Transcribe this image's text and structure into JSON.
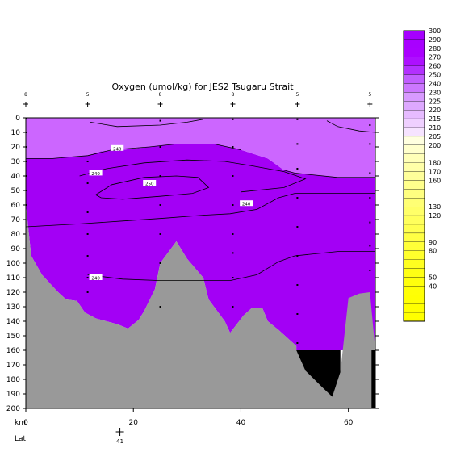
{
  "chart_data": {
    "type": "heatmap",
    "title": "Oxygen (umol/kg) for JES2 Tsugaru Strait",
    "xlabel": "km",
    "lat_label": "Lat",
    "lat_ticks": [
      {
        "x": 17.5,
        "label": "41"
      }
    ],
    "xlim": [
      0,
      65
    ],
    "ylim": [
      200,
      0
    ],
    "x_ticks": [
      0,
      20,
      40,
      60
    ],
    "y_ticks": [
      0,
      10,
      20,
      30,
      40,
      50,
      60,
      70,
      80,
      90,
      100,
      110,
      120,
      130,
      140,
      150,
      160,
      170,
      180,
      190,
      200
    ],
    "stations": [
      {
        "x": 0,
        "label": "8"
      },
      {
        "x": 11.5,
        "label": "5"
      },
      {
        "x": 25,
        "label": "8"
      },
      {
        "x": 38.5,
        "label": "8"
      },
      {
        "x": 50.5,
        "label": "5"
      },
      {
        "x": 64,
        "label": "5"
      }
    ],
    "colorbar": {
      "levels": [
        300,
        290,
        280,
        270,
        260,
        250,
        240,
        230,
        225,
        220,
        215,
        210,
        205,
        200,
        190,
        180,
        170,
        160,
        150,
        140,
        130,
        120,
        110,
        100,
        90,
        80,
        70,
        60,
        50,
        40,
        30,
        20,
        10
      ],
      "labels": [
        "300",
        "290",
        "280",
        "270",
        "260",
        "250",
        "240",
        "230",
        "225",
        "220",
        "215",
        "210",
        "205",
        "200",
        "",
        "180",
        "170",
        "160",
        "",
        "",
        "130",
        "120",
        "",
        "",
        "90",
        "80",
        "",
        "",
        "50",
        "40",
        "",
        "",
        ""
      ],
      "colors": [
        "#a600ff",
        "#a800ff",
        "#aa00ff",
        "#ad10ff",
        "#b330ff",
        "#c15eff",
        "#cc77ff",
        "#d89aff",
        "#dda8ff",
        "#e6bbff",
        "#efd0ff",
        "#f6e3ff",
        "#ffffe0",
        "#ffffcc",
        "#ffffb8",
        "#ffffa8",
        "#ffff9a",
        "#ffff8c",
        "#ffff80",
        "#ffff74",
        "#ffff68",
        "#ffff5c",
        "#ffff50",
        "#ffff44",
        "#ffff38",
        "#ffff2c",
        "#ffff20",
        "#ffff14",
        "#ffff0c",
        "#ffff06",
        "#ffff03",
        "#ffff00",
        "#ffff00"
      ]
    },
    "regions": [
      {
        "name": "purple-250-260",
        "color": "#a300f5",
        "points": [
          [
            0,
            28
          ],
          [
            5,
            28
          ],
          [
            8,
            27
          ],
          [
            11.5,
            26
          ],
          [
            14,
            23
          ],
          [
            18,
            22
          ],
          [
            23,
            20
          ],
          [
            28,
            18
          ],
          [
            35,
            18
          ],
          [
            40,
            22
          ],
          [
            45,
            28
          ],
          [
            48,
            36
          ],
          [
            50,
            38
          ],
          [
            58,
            41
          ],
          [
            65,
            41
          ],
          [
            65,
            160
          ],
          [
            50.3,
            160
          ],
          [
            50.3,
            157
          ],
          [
            47,
            146
          ],
          [
            45,
            140
          ],
          [
            44,
            131
          ],
          [
            42,
            131
          ],
          [
            40.5,
            136
          ],
          [
            38,
            148
          ],
          [
            37,
            140
          ],
          [
            34,
            125
          ],
          [
            33,
            110
          ],
          [
            30,
            97
          ],
          [
            28,
            85
          ],
          [
            27,
            90
          ],
          [
            25,
            100
          ],
          [
            24,
            118
          ],
          [
            22,
            133
          ],
          [
            21,
            139
          ],
          [
            19,
            145
          ],
          [
            17,
            142
          ],
          [
            15,
            140
          ],
          [
            13,
            138
          ],
          [
            11,
            134
          ],
          [
            9.5,
            126
          ],
          [
            7.5,
            125
          ],
          [
            6,
            120
          ],
          [
            3,
            108
          ],
          [
            1,
            95
          ],
          [
            0,
            60
          ]
        ]
      },
      {
        "name": "purple-220-250",
        "color": "#cc66ff",
        "points": [
          [
            0,
            0
          ],
          [
            65,
            0
          ],
          [
            65,
            41
          ],
          [
            58,
            41
          ],
          [
            50,
            38
          ],
          [
            48,
            36
          ],
          [
            45,
            28
          ],
          [
            40,
            22
          ],
          [
            35,
            18
          ],
          [
            28,
            18
          ],
          [
            23,
            20
          ],
          [
            18,
            22
          ],
          [
            14,
            23
          ],
          [
            11.5,
            26
          ],
          [
            8,
            27
          ],
          [
            5,
            28
          ],
          [
            0,
            28
          ]
        ]
      },
      {
        "name": "bottom-bathymetry",
        "color": "#999999",
        "points": [
          [
            0,
            60
          ],
          [
            1,
            95
          ],
          [
            3,
            108
          ],
          [
            6,
            120
          ],
          [
            7.5,
            125
          ],
          [
            9.5,
            126
          ],
          [
            11,
            134
          ],
          [
            13,
            138
          ],
          [
            15,
            140
          ],
          [
            17,
            142
          ],
          [
            19,
            145
          ],
          [
            21,
            139
          ],
          [
            22,
            133
          ],
          [
            24,
            118
          ],
          [
            25,
            100
          ],
          [
            27,
            90
          ],
          [
            28,
            85
          ],
          [
            30,
            97
          ],
          [
            33,
            110
          ],
          [
            34,
            125
          ],
          [
            37,
            140
          ],
          [
            38,
            148
          ],
          [
            40.5,
            136
          ],
          [
            42,
            131
          ],
          [
            44,
            131
          ],
          [
            45,
            140
          ],
          [
            47,
            146
          ],
          [
            50.3,
            157
          ],
          [
            50.3,
            160
          ],
          [
            52,
            174
          ],
          [
            55,
            185
          ],
          [
            57,
            192
          ],
          [
            58.5,
            175
          ],
          [
            60,
            124
          ],
          [
            62,
            121
          ],
          [
            64,
            120
          ],
          [
            65,
            160
          ],
          [
            65,
            200
          ],
          [
            0,
            200
          ]
        ]
      },
      {
        "name": "no-data-black",
        "color": "#000000",
        "points": [
          [
            50.3,
            160
          ],
          [
            58.5,
            160
          ],
          [
            58.5,
            175
          ],
          [
            57,
            192
          ],
          [
            55,
            185
          ],
          [
            52,
            174
          ]
        ]
      },
      {
        "name": "no-data-black-right",
        "color": "#000000",
        "points": [
          [
            64.3,
            160
          ],
          [
            65,
            160
          ],
          [
            65,
            200
          ],
          [
            64.3,
            200
          ]
        ]
      }
    ],
    "contours": [
      {
        "label": "240",
        "label_at": [
          13,
          110
        ],
        "points": [
          [
            11.5,
            108
          ],
          [
            18,
            111
          ],
          [
            25,
            112
          ],
          [
            33,
            112
          ],
          [
            38,
            112
          ],
          [
            43,
            108
          ],
          [
            47,
            99
          ],
          [
            50,
            95
          ],
          [
            58,
            92
          ],
          [
            65,
            92
          ]
        ]
      },
      {
        "label": "240",
        "label_at": [
          41,
          59
        ],
        "points": [
          [
            0,
            75
          ],
          [
            10,
            73
          ],
          [
            18,
            71
          ],
          [
            26,
            69
          ],
          [
            33,
            67
          ],
          [
            38,
            66
          ],
          [
            43,
            63
          ],
          [
            47,
            55
          ],
          [
            50,
            52
          ],
          [
            56,
            52
          ],
          [
            65,
            52
          ]
        ]
      },
      {
        "label": "250",
        "label_at": [
          23,
          45
        ],
        "points": [
          [
            13,
            53
          ],
          [
            16,
            46
          ],
          [
            22,
            41
          ],
          [
            28,
            40
          ],
          [
            32,
            41
          ],
          [
            34,
            48
          ],
          [
            31,
            52
          ],
          [
            25,
            54
          ],
          [
            18,
            56
          ],
          [
            14,
            55
          ],
          [
            13,
            53
          ]
        ]
      },
      {
        "label": "240",
        "label_at": [
          17,
          21
        ],
        "points": [
          [
            11.5,
            26
          ],
          [
            16,
            22
          ],
          [
            23,
            20
          ],
          [
            28,
            18
          ],
          [
            35,
            18
          ],
          [
            40,
            22
          ]
        ]
      },
      {
        "label": "240",
        "label_at": [
          13,
          38
        ],
        "points": [
          [
            10,
            40
          ],
          [
            15,
            35
          ],
          [
            22,
            31
          ],
          [
            30,
            29
          ],
          [
            37,
            30
          ],
          [
            42,
            33
          ],
          [
            48,
            37
          ],
          [
            52,
            42
          ],
          [
            48,
            48
          ],
          [
            40,
            51
          ]
        ]
      },
      {
        "label": "",
        "label_at": [
          0,
          0
        ],
        "points": [
          [
            0,
            28
          ],
          [
            5,
            28
          ],
          [
            8,
            27
          ],
          [
            11.5,
            26
          ]
        ]
      },
      {
        "label": "",
        "label_at": [
          0,
          0
        ],
        "points": [
          [
            48,
            36
          ],
          [
            50,
            38
          ],
          [
            58,
            41
          ],
          [
            65,
            41
          ]
        ]
      },
      {
        "label": "",
        "label_at": [
          0,
          0
        ],
        "points": [
          [
            12,
            3
          ],
          [
            17,
            6
          ],
          [
            25,
            5
          ],
          [
            30,
            3
          ],
          [
            33,
            1
          ]
        ]
      },
      {
        "label": "",
        "label_at": [
          0,
          0
        ],
        "points": [
          [
            56,
            2
          ],
          [
            58,
            6
          ],
          [
            62,
            9
          ],
          [
            65,
            10
          ]
        ]
      }
    ],
    "samples": [
      {
        "x": 0,
        "depths": [
          0,
          10,
          20,
          30,
          40,
          50,
          60
        ]
      },
      {
        "x": 11.5,
        "depths": [
          30,
          45,
          65,
          80,
          95,
          110,
          120
        ]
      },
      {
        "x": 25,
        "depths": [
          2,
          20,
          40,
          60,
          80,
          100,
          130
        ]
      },
      {
        "x": 38.5,
        "depths": [
          1,
          20,
          40,
          60,
          80,
          93,
          110,
          130
        ]
      },
      {
        "x": 50.5,
        "depths": [
          1,
          18,
          35,
          55,
          75,
          95,
          115,
          135,
          155
        ]
      },
      {
        "x": 64,
        "depths": [
          5,
          18,
          38,
          55,
          72,
          88,
          105
        ]
      }
    ],
    "grid": false,
    "legend": "right-colorbar"
  }
}
